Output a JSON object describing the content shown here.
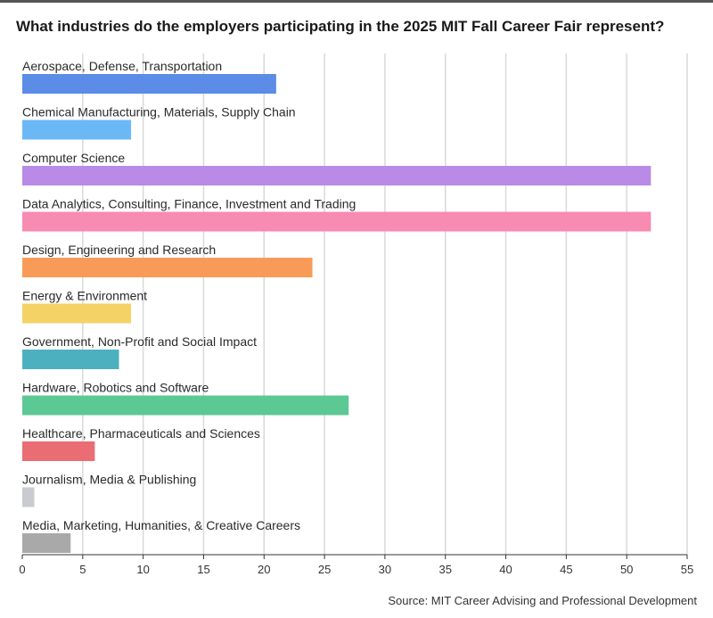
{
  "title": "What industries do the employers participating in the 2025 MIT Fall Career Fair represent?",
  "source": "Source: MIT Career Advising and Professional Development",
  "chart_data": {
    "type": "bar",
    "orientation": "horizontal",
    "title": "What industries do the employers participating in the 2025 MIT Fall Career Fair represent?",
    "xlabel": "",
    "ylabel": "",
    "xlim": [
      0,
      55
    ],
    "xticks": [
      0,
      5,
      10,
      15,
      20,
      25,
      30,
      35,
      40,
      45,
      50,
      55
    ],
    "grid": true,
    "categories": [
      "Aerospace, Defense, Transportation",
      "Chemical Manufacturing, Materials, Supply Chain",
      "Computer Science",
      "Data Analytics, Consulting, Finance, Investment and Trading",
      "Design, Engineering and Research",
      "Energy & Environment",
      "Government, Non-Profit and Social Impact",
      "Hardware, Robotics and Software",
      "Healthcare, Pharmaceuticals and Sciences",
      "Journalism, Media & Publishing",
      "Media, Marketing, Humanities, & Creative Careers"
    ],
    "values": [
      21,
      9,
      52,
      52,
      24,
      9,
      8,
      27,
      6,
      1,
      4
    ],
    "colors": [
      "#5b8ce6",
      "#6cb8f7",
      "#b98ae6",
      "#f78bb1",
      "#f99b58",
      "#f5d266",
      "#4db0bf",
      "#5cc894",
      "#ea6d74",
      "#c9cbd0",
      "#a9a9a9"
    ]
  }
}
